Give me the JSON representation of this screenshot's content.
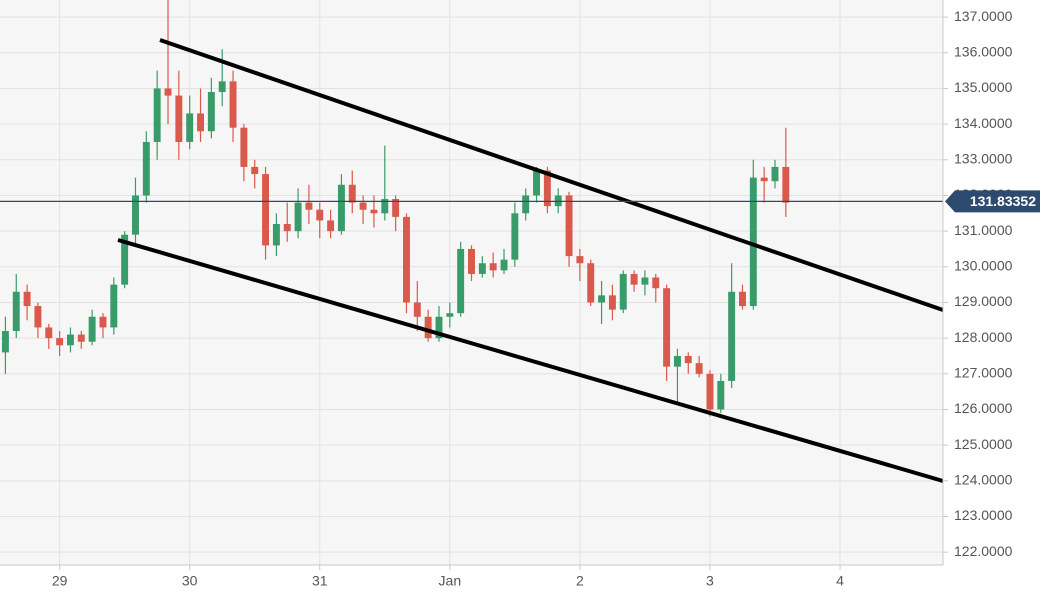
{
  "chart_data": {
    "type": "candlestick",
    "categories": [
      null,
      null,
      null,
      null,
      null,
      "29",
      null,
      null,
      null,
      null,
      null,
      null,
      null,
      null,
      null,
      null,
      null,
      "30",
      null,
      null,
      null,
      null,
      null,
      null,
      null,
      null,
      null,
      null,
      null,
      "31",
      null,
      null,
      null,
      null,
      null,
      null,
      null,
      null,
      null,
      null,
      null,
      "Jan",
      null,
      null,
      null,
      null,
      null,
      null,
      null,
      null,
      null,
      null,
      null,
      "2",
      null,
      null,
      null,
      null,
      null,
      null,
      null,
      null,
      null,
      null,
      null,
      "3",
      null,
      null,
      null,
      null,
      null,
      null,
      null,
      null,
      null,
      null,
      null,
      "4",
      null,
      null,
      null,
      null,
      null,
      null,
      null,
      null,
      null
    ],
    "open": [
      127.6,
      128.2,
      129.3,
      128.9,
      128.3,
      128.0,
      127.8,
      128.1,
      127.9,
      128.6,
      128.3,
      129.5,
      130.9,
      132.0,
      133.5,
      135.0,
      134.8,
      133.5,
      134.3,
      133.8,
      134.9,
      135.2,
      133.9,
      132.8,
      132.6,
      130.6,
      131.2,
      131.0,
      131.8,
      131.6,
      131.3,
      131.0,
      132.3,
      131.8,
      131.6,
      131.5,
      131.9,
      131.4,
      129.0,
      128.6,
      128.0,
      128.6,
      128.7,
      130.5,
      129.8,
      130.1,
      129.9,
      130.2,
      131.5,
      132.0,
      132.7,
      131.7,
      132.0,
      130.3,
      130.1,
      129.0,
      129.2,
      128.8,
      129.8,
      129.5,
      129.7,
      129.4,
      127.2,
      127.5,
      127.3,
      127.0,
      126.0,
      126.8,
      129.3,
      128.9,
      132.5,
      132.4,
      132.8,
      null,
      null,
      null,
      null,
      null,
      null,
      null,
      null,
      null,
      null,
      null,
      null,
      null,
      null
    ],
    "high": [
      128.6,
      129.8,
      129.5,
      129.0,
      128.4,
      128.2,
      128.3,
      128.2,
      128.8,
      128.7,
      129.7,
      131.0,
      132.5,
      133.8,
      135.5,
      137.5,
      135.5,
      134.8,
      135.0,
      135.3,
      136.1,
      135.5,
      134.0,
      133.0,
      132.8,
      131.5,
      131.8,
      132.2,
      132.3,
      131.8,
      131.6,
      132.6,
      132.7,
      132.0,
      132.0,
      133.4,
      132.0,
      131.5,
      129.6,
      128.8,
      128.9,
      129.0,
      130.7,
      130.6,
      130.3,
      130.4,
      130.5,
      131.8,
      132.2,
      132.8,
      132.8,
      132.2,
      132.1,
      130.5,
      130.2,
      129.6,
      129.5,
      129.9,
      129.9,
      129.9,
      129.8,
      129.5,
      127.7,
      127.6,
      127.5,
      127.1,
      127.0,
      130.1,
      129.5,
      133.0,
      132.8,
      133.0,
      133.9,
      null,
      null,
      null,
      null,
      null,
      null,
      null,
      null,
      null,
      null,
      null,
      null,
      null,
      null
    ],
    "low": [
      127.0,
      128.0,
      128.5,
      128.0,
      127.7,
      127.5,
      127.6,
      127.7,
      127.8,
      128.0,
      128.1,
      129.4,
      130.6,
      131.8,
      133.0,
      134.0,
      133.0,
      133.3,
      133.5,
      133.6,
      134.5,
      133.5,
      132.4,
      132.2,
      130.2,
      130.3,
      130.7,
      130.8,
      131.2,
      130.8,
      130.8,
      130.9,
      131.5,
      131.2,
      131.1,
      131.3,
      131.0,
      128.7,
      128.2,
      127.9,
      127.9,
      128.3,
      128.6,
      129.6,
      129.7,
      129.7,
      129.8,
      130.0,
      131.3,
      131.8,
      131.5,
      131.5,
      130.0,
      129.6,
      128.9,
      128.4,
      128.5,
      128.7,
      129.3,
      129.2,
      129.0,
      126.8,
      126.2,
      127.0,
      126.9,
      125.8,
      125.9,
      126.6,
      128.8,
      128.8,
      131.8,
      132.2,
      131.4,
      null,
      null,
      null,
      null,
      null,
      null,
      null,
      null,
      null,
      null,
      null,
      null,
      null,
      null
    ],
    "close": [
      128.2,
      129.3,
      128.9,
      128.3,
      128.0,
      127.8,
      128.1,
      127.9,
      128.6,
      128.3,
      129.5,
      130.9,
      132.0,
      133.5,
      135.0,
      134.8,
      133.5,
      134.3,
      133.8,
      134.9,
      135.2,
      133.9,
      132.8,
      132.6,
      130.6,
      131.2,
      131.0,
      131.8,
      131.6,
      131.3,
      131.0,
      132.3,
      131.8,
      131.6,
      131.5,
      131.9,
      131.4,
      129.0,
      128.6,
      128.0,
      128.6,
      128.7,
      130.5,
      129.8,
      130.1,
      129.9,
      130.2,
      131.5,
      132.0,
      132.7,
      131.7,
      132.0,
      130.3,
      130.1,
      129.0,
      129.2,
      128.8,
      129.8,
      129.5,
      129.7,
      129.4,
      127.2,
      127.5,
      127.3,
      127.0,
      126.0,
      126.8,
      129.3,
      128.9,
      132.5,
      132.4,
      132.8,
      131.8,
      null,
      null,
      null,
      null,
      null,
      null,
      null,
      null,
      null,
      null,
      null,
      null,
      null,
      null
    ],
    "up_color": "#3a9b6a",
    "down_color": "#d9594c",
    "ylim": [
      121.64,
      137.48
    ],
    "yticks": [
      {
        "value": 122,
        "label": "122.0000"
      },
      {
        "value": 123,
        "label": "123.0000"
      },
      {
        "value": 124,
        "label": "124.0000"
      },
      {
        "value": 125,
        "label": "125.0000"
      },
      {
        "value": 126,
        "label": "126.0000"
      },
      {
        "value": 127,
        "label": "127.0000"
      },
      {
        "value": 128,
        "label": "128.0000"
      },
      {
        "value": 129,
        "label": "129.0000"
      },
      {
        "value": 130,
        "label": "130.0000"
      },
      {
        "value": 131,
        "label": "131.0000"
      },
      {
        "value": 132,
        "label": "132.0000"
      },
      {
        "value": 133,
        "label": "133.0000"
      },
      {
        "value": 134,
        "label": "134.0000"
      },
      {
        "value": 135,
        "label": "135.0000"
      },
      {
        "value": 136,
        "label": "136.0000"
      },
      {
        "value": 137,
        "label": "137.0000"
      }
    ],
    "grid": true,
    "current_price": 131.83352,
    "current_price_color": "#2d4b6f"
  }
}
